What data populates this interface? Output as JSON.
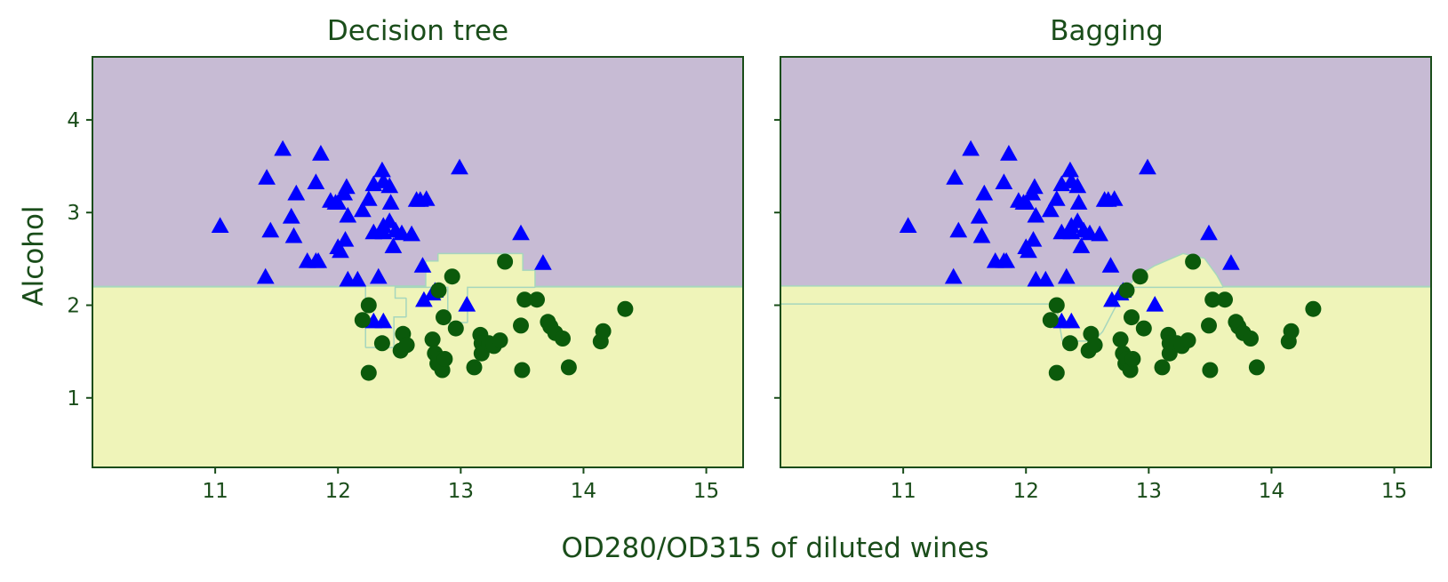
{
  "figure": {
    "xlabel": "OD280/OD315 of diluted wines",
    "ylabel": "Alcohol"
  },
  "colors": {
    "text": "#1a4d1a",
    "region_class0": "#c7bbd4",
    "region_class1": "#eff4b9",
    "boundary": "#a6d6bd",
    "class0_marker": "#0000ff",
    "class1_marker": "#0b5a0b"
  },
  "chart_data": [
    {
      "type": "scatter",
      "title": "Decision tree",
      "xlim": [
        10.0,
        15.3
      ],
      "ylim": [
        0.25,
        4.68
      ],
      "xticks": [
        11,
        12,
        13,
        14,
        15
      ],
      "yticks": [
        1,
        2,
        3,
        4
      ],
      "show_yticklabels": true,
      "boundary_y": 2.2,
      "region_polygon": [
        [
          12.23,
          2.2
        ],
        [
          12.23,
          1.55
        ],
        [
          12.45,
          1.55
        ],
        [
          12.45,
          1.88
        ],
        [
          12.55,
          1.88
        ],
        [
          12.55,
          2.07
        ],
        [
          12.46,
          2.07
        ],
        [
          12.46,
          2.2
        ],
        [
          12.72,
          2.2
        ],
        [
          12.72,
          2.47
        ],
        [
          12.82,
          2.47
        ],
        [
          12.82,
          2.55
        ],
        [
          13.5,
          2.55
        ],
        [
          13.5,
          2.37
        ],
        [
          13.6,
          2.37
        ],
        [
          13.6,
          2.2
        ],
        [
          13.05,
          2.2
        ],
        [
          13.05,
          1.82
        ],
        [
          12.9,
          1.82
        ],
        [
          12.9,
          2.2
        ]
      ],
      "series": [
        {
          "class": "class_0",
          "marker": "triangle",
          "points": [
            [
              11.04,
              2.85
            ],
            [
              11.45,
              2.8
            ],
            [
              11.42,
              3.37
            ],
            [
              11.55,
              3.68
            ],
            [
              11.62,
              2.95
            ],
            [
              11.64,
              2.74
            ],
            [
              11.66,
              3.2
            ],
            [
              11.75,
              2.47
            ],
            [
              11.82,
              2.47
            ],
            [
              11.84,
              2.47
            ],
            [
              11.82,
              3.32
            ],
            [
              11.86,
              3.63
            ],
            [
              11.41,
              2.3
            ],
            [
              11.94,
              3.12
            ],
            [
              11.98,
              3.1
            ],
            [
              12.0,
              3.1
            ],
            [
              12.0,
              2.62
            ],
            [
              12.02,
              2.58
            ],
            [
              12.06,
              2.7
            ],
            [
              12.05,
              3.2
            ],
            [
              12.07,
              3.27
            ],
            [
              12.08,
              2.96
            ],
            [
              12.08,
              2.27
            ],
            [
              12.16,
              2.27
            ],
            [
              12.2,
              3.02
            ],
            [
              12.25,
              3.14
            ],
            [
              12.29,
              3.3
            ],
            [
              12.29,
              2.78
            ],
            [
              12.33,
              2.3
            ],
            [
              12.36,
              3.45
            ],
            [
              12.37,
              3.33
            ],
            [
              12.37,
              2.85
            ],
            [
              12.37,
              2.78
            ],
            [
              12.42,
              3.28
            ],
            [
              12.42,
              2.9
            ],
            [
              12.43,
              3.1
            ],
            [
              12.47,
              2.8
            ],
            [
              12.45,
              2.63
            ],
            [
              12.52,
              2.77
            ],
            [
              12.6,
              2.76
            ],
            [
              12.64,
              3.13
            ],
            [
              12.67,
              3.13
            ],
            [
              12.72,
              3.14
            ],
            [
              12.69,
              2.42
            ],
            [
              12.7,
              2.05
            ],
            [
              12.77,
              2.12
            ],
            [
              12.29,
              1.82
            ],
            [
              12.37,
              1.82
            ],
            [
              12.99,
              3.48
            ],
            [
              12.79,
              2.15
            ],
            [
              13.05,
              2.0
            ],
            [
              13.49,
              2.77
            ],
            [
              13.67,
              2.45
            ]
          ]
        },
        {
          "class": "class_1",
          "marker": "circle",
          "points": [
            [
              12.25,
              1.27
            ],
            [
              12.2,
              1.84
            ],
            [
              12.25,
              2.0
            ],
            [
              12.36,
              1.59
            ],
            [
              12.51,
              1.51
            ],
            [
              12.53,
              1.69
            ],
            [
              12.56,
              1.57
            ],
            [
              12.77,
              1.63
            ],
            [
              12.79,
              1.48
            ],
            [
              12.81,
              1.37
            ],
            [
              12.82,
              1.42
            ],
            [
              12.82,
              2.16
            ],
            [
              12.85,
              1.3
            ],
            [
              12.86,
              1.87
            ],
            [
              12.87,
              1.42
            ],
            [
              12.93,
              2.31
            ],
            [
              12.96,
              1.75
            ],
            [
              13.11,
              1.33
            ],
            [
              13.16,
              1.68
            ],
            [
              13.17,
              1.59
            ],
            [
              13.17,
              1.48
            ],
            [
              13.23,
              1.59
            ],
            [
              13.27,
              1.56
            ],
            [
              13.36,
              2.47
            ],
            [
              13.32,
              1.62
            ],
            [
              13.49,
              1.78
            ],
            [
              13.52,
              2.06
            ],
            [
              13.5,
              1.3
            ],
            [
              13.62,
              2.06
            ],
            [
              13.71,
              1.82
            ],
            [
              13.73,
              1.77
            ],
            [
              13.77,
              1.7
            ],
            [
              13.83,
              1.64
            ],
            [
              13.88,
              1.33
            ],
            [
              14.14,
              1.61
            ],
            [
              14.16,
              1.72
            ],
            [
              14.34,
              1.96
            ]
          ]
        }
      ]
    },
    {
      "type": "scatter",
      "title": "Bagging",
      "xlim": [
        10.0,
        15.3
      ],
      "ylim": [
        0.25,
        4.68
      ],
      "xticks": [
        11,
        12,
        13,
        14,
        15
      ],
      "yticks": [
        1,
        2,
        3,
        4
      ],
      "show_yticklabels": false,
      "boundary_y": 2.2,
      "region_polygon": [
        [
          10.0,
          2.2
        ],
        [
          10.0,
          2.02
        ],
        [
          12.25,
          2.02
        ],
        [
          12.3,
          1.62
        ],
        [
          12.55,
          1.62
        ],
        [
          12.62,
          1.72
        ],
        [
          12.75,
          2.05
        ],
        [
          12.9,
          2.3
        ],
        [
          13.05,
          2.42
        ],
        [
          13.28,
          2.55
        ],
        [
          13.45,
          2.5
        ],
        [
          13.55,
          2.32
        ],
        [
          13.6,
          2.2
        ]
      ],
      "series": [
        {
          "class": "class_0",
          "marker": "triangle",
          "points": [
            [
              11.04,
              2.85
            ],
            [
              11.45,
              2.8
            ],
            [
              11.42,
              3.37
            ],
            [
              11.55,
              3.68
            ],
            [
              11.62,
              2.95
            ],
            [
              11.64,
              2.74
            ],
            [
              11.66,
              3.2
            ],
            [
              11.75,
              2.47
            ],
            [
              11.82,
              2.47
            ],
            [
              11.84,
              2.47
            ],
            [
              11.82,
              3.32
            ],
            [
              11.86,
              3.63
            ],
            [
              11.41,
              2.3
            ],
            [
              11.94,
              3.12
            ],
            [
              11.98,
              3.1
            ],
            [
              12.0,
              3.1
            ],
            [
              12.0,
              2.62
            ],
            [
              12.02,
              2.58
            ],
            [
              12.06,
              2.7
            ],
            [
              12.05,
              3.2
            ],
            [
              12.07,
              3.27
            ],
            [
              12.08,
              2.96
            ],
            [
              12.08,
              2.27
            ],
            [
              12.16,
              2.27
            ],
            [
              12.2,
              3.02
            ],
            [
              12.25,
              3.14
            ],
            [
              12.29,
              3.3
            ],
            [
              12.29,
              2.78
            ],
            [
              12.33,
              2.3
            ],
            [
              12.36,
              3.45
            ],
            [
              12.37,
              3.33
            ],
            [
              12.37,
              2.85
            ],
            [
              12.37,
              2.78
            ],
            [
              12.42,
              3.28
            ],
            [
              12.42,
              2.9
            ],
            [
              12.43,
              3.1
            ],
            [
              12.47,
              2.8
            ],
            [
              12.45,
              2.63
            ],
            [
              12.52,
              2.77
            ],
            [
              12.6,
              2.76
            ],
            [
              12.64,
              3.13
            ],
            [
              12.67,
              3.13
            ],
            [
              12.72,
              3.14
            ],
            [
              12.69,
              2.42
            ],
            [
              12.7,
              2.05
            ],
            [
              12.77,
              2.12
            ],
            [
              12.29,
              1.82
            ],
            [
              12.37,
              1.82
            ],
            [
              12.99,
              3.48
            ],
            [
              12.79,
              2.15
            ],
            [
              13.05,
              2.0
            ],
            [
              13.49,
              2.77
            ],
            [
              13.67,
              2.45
            ]
          ]
        },
        {
          "class": "class_1",
          "marker": "circle",
          "points": [
            [
              12.25,
              1.27
            ],
            [
              12.2,
              1.84
            ],
            [
              12.25,
              2.0
            ],
            [
              12.36,
              1.59
            ],
            [
              12.51,
              1.51
            ],
            [
              12.53,
              1.69
            ],
            [
              12.56,
              1.57
            ],
            [
              12.77,
              1.63
            ],
            [
              12.79,
              1.48
            ],
            [
              12.81,
              1.37
            ],
            [
              12.82,
              1.42
            ],
            [
              12.82,
              2.16
            ],
            [
              12.85,
              1.3
            ],
            [
              12.86,
              1.87
            ],
            [
              12.87,
              1.42
            ],
            [
              12.93,
              2.31
            ],
            [
              12.96,
              1.75
            ],
            [
              13.11,
              1.33
            ],
            [
              13.16,
              1.68
            ],
            [
              13.17,
              1.59
            ],
            [
              13.17,
              1.48
            ],
            [
              13.23,
              1.59
            ],
            [
              13.27,
              1.56
            ],
            [
              13.36,
              2.47
            ],
            [
              13.32,
              1.62
            ],
            [
              13.49,
              1.78
            ],
            [
              13.52,
              2.06
            ],
            [
              13.5,
              1.3
            ],
            [
              13.62,
              2.06
            ],
            [
              13.71,
              1.82
            ],
            [
              13.73,
              1.77
            ],
            [
              13.77,
              1.7
            ],
            [
              13.83,
              1.64
            ],
            [
              13.88,
              1.33
            ],
            [
              14.14,
              1.61
            ],
            [
              14.16,
              1.72
            ],
            [
              14.34,
              1.96
            ]
          ]
        }
      ]
    }
  ]
}
